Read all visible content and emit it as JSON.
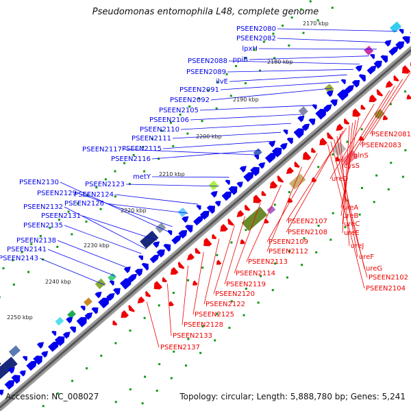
{
  "title": "Pseudomonas entomophila L48, complete genome",
  "footer": {
    "accession": "Accession: NC_008027",
    "summary": "Topology: circular; Length: 5,888,780 bp; Genes: 5,241"
  },
  "colors": {
    "forward": "#0000ee",
    "reverse": "#ee0000",
    "backbone": "#888888",
    "tick": "#119911"
  },
  "kbp_ticks": [
    "2170 kbp",
    "2180 kbp",
    "2190 kbp",
    "2200 kbp",
    "2210 kbp",
    "2220 kbp",
    "2230 kbp",
    "2240 kbp",
    "2250 kbp"
  ],
  "forward_genes": [
    "PSEEN2080",
    "PSEEN2082",
    "lpxH",
    "ppiB",
    "PSEEN2088",
    "PSEEN2089",
    "ilvE",
    "PSEEN2091",
    "PSEEN2092",
    "PSEEN2105",
    "PSEEN2106",
    "PSEEN2110",
    "PSEEN2111",
    "PSEEN2117",
    "PSEEN2115",
    "PSEEN2116",
    "metY",
    "PSEEN2123",
    "PSEEN2130",
    "PSEEN2129",
    "PSEEN2124",
    "PSEEN2126",
    "PSEEN2132",
    "PSEEN2131",
    "PSEEN2135",
    "PSEEN2138",
    "PSEEN2141",
    "PSEEN2143"
  ],
  "reverse_genes": [
    "PSEEN2081",
    "PSEEN2083",
    "glnS",
    "cysS",
    "ureD",
    "ureA",
    "ureB",
    "ureC",
    "ureE",
    "PSEEN2107",
    "PSEEN2108",
    "ureJ",
    "ureF",
    "ureG",
    "PSEEN2102",
    "PSEEN2104",
    "PSEEN2109",
    "PSEEN2112",
    "PSEEN2113",
    "PSEEN2114",
    "PSEEN2119",
    "PSEEN2120",
    "PSEEN2122",
    "PSEEN2125",
    "PSEEN2128",
    "PSEEN2133",
    "PSEEN2137"
  ]
}
